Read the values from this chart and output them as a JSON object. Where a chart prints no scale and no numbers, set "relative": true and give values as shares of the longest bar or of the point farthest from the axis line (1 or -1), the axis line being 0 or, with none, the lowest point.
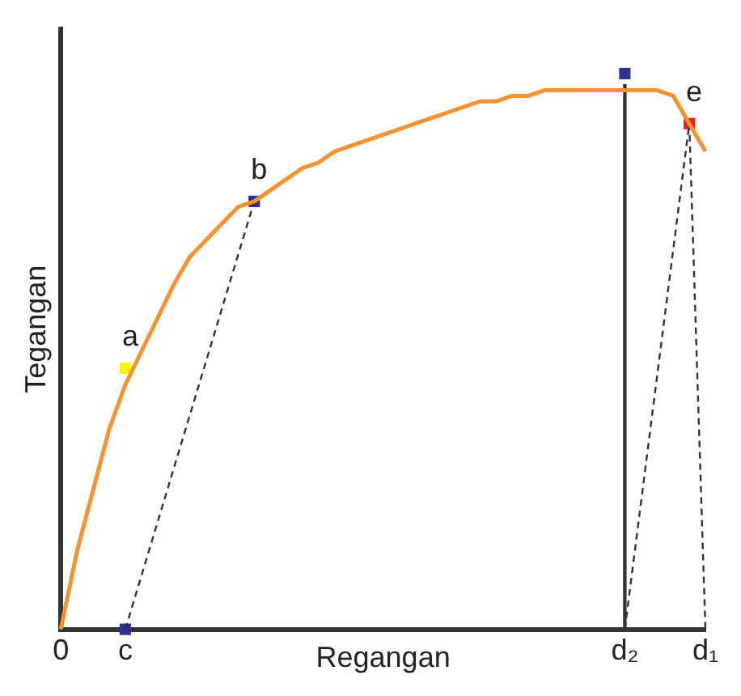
{
  "chart_data": {
    "type": "line",
    "relative": true,
    "xlabel": "Regangan",
    "ylabel": "Tegangan",
    "categories": [
      "0",
      null,
      null,
      null,
      "c",
      null,
      null,
      null,
      null,
      null,
      null,
      null,
      null,
      null,
      null,
      null,
      null,
      null,
      null,
      null,
      null,
      null,
      null,
      null,
      null,
      null,
      null,
      null,
      null,
      null,
      null,
      null,
      null,
      null,
      null,
      "d₂",
      null,
      null,
      null,
      null,
      "d₁"
    ],
    "grid": false,
    "legend": false,
    "series": [
      {
        "color": "#f7922e",
        "marker": "none",
        "line_style": "solid",
        "values": [
          0,
          0.14,
          0.25,
          0.36,
          0.44,
          0.5,
          0.56,
          0.62,
          0.67,
          0.7,
          0.73,
          0.76,
          0.77,
          0.79,
          0.81,
          0.83,
          0.84,
          0.86,
          0.87,
          0.88,
          0.89,
          0.9,
          0.91,
          0.92,
          0.93,
          0.94,
          0.95,
          0.95,
          0.96,
          0.96,
          0.97,
          0.97,
          0.97,
          0.97,
          0.97,
          0.97,
          0.97,
          0.97,
          0.96,
          0.91,
          0.86
        ]
      },
      {
        "type": "line",
        "color": "#333333",
        "marker": "none",
        "line_style": "dashed",
        "values": [
          null,
          null,
          null,
          null,
          0,
          null,
          null,
          null,
          null,
          null,
          null,
          null,
          0.77,
          null,
          null,
          null,
          null,
          null,
          null,
          null,
          null,
          null,
          null,
          null,
          null,
          null,
          null,
          null,
          null,
          null,
          null,
          null,
          null,
          null,
          null,
          null,
          null,
          null,
          null,
          null,
          null
        ]
      },
      {
        "type": "line",
        "color": "#333333",
        "marker": "none",
        "line_style": "dashed",
        "values": [
          null,
          null,
          null,
          null,
          null,
          null,
          null,
          null,
          null,
          null,
          null,
          null,
          null,
          null,
          null,
          null,
          null,
          null,
          null,
          null,
          null,
          null,
          null,
          null,
          null,
          null,
          null,
          null,
          null,
          null,
          null,
          null,
          null,
          null,
          null,
          0,
          null,
          null,
          null,
          0.91,
          0
        ]
      },
      {
        "type": "scatter",
        "name": "a",
        "color": "#fff200",
        "marker": "square",
        "values": [
          null,
          null,
          null,
          null,
          0.47,
          null,
          null,
          null,
          null,
          null,
          null,
          null,
          null,
          null,
          null,
          null,
          null,
          null,
          null,
          null,
          null,
          null,
          null,
          null,
          null,
          null,
          null,
          null,
          null,
          null,
          null,
          null,
          null,
          null,
          null,
          null,
          null,
          null,
          null,
          null,
          null
        ]
      },
      {
        "type": "scatter",
        "name": "b",
        "color": "#2e3192",
        "marker": "square",
        "values": [
          null,
          null,
          null,
          null,
          null,
          null,
          null,
          null,
          null,
          null,
          null,
          null,
          0.77,
          null,
          null,
          null,
          null,
          null,
          null,
          null,
          null,
          null,
          null,
          null,
          null,
          null,
          null,
          null,
          null,
          null,
          null,
          null,
          null,
          null,
          null,
          null,
          null,
          null,
          null,
          null,
          null
        ]
      },
      {
        "type": "scatter",
        "name": "e",
        "color": "#ed1c24",
        "marker": "square",
        "values": [
          null,
          null,
          null,
          null,
          null,
          null,
          null,
          null,
          null,
          null,
          null,
          null,
          null,
          null,
          null,
          null,
          null,
          null,
          null,
          null,
          null,
          null,
          null,
          null,
          null,
          null,
          null,
          null,
          null,
          null,
          null,
          null,
          null,
          null,
          null,
          null,
          null,
          null,
          null,
          0.91,
          null
        ]
      },
      {
        "type": "bar",
        "color": "#333333",
        "values": [
          null,
          null,
          null,
          null,
          null,
          null,
          null,
          null,
          null,
          null,
          null,
          null,
          null,
          null,
          null,
          null,
          null,
          null,
          null,
          null,
          null,
          null,
          null,
          null,
          null,
          null,
          null,
          null,
          null,
          null,
          null,
          null,
          null,
          null,
          null,
          0.98,
          null,
          null,
          null,
          null,
          null
        ]
      },
      {
        "type": "scatter",
        "color": "#2e3192",
        "marker": "square",
        "values": [
          null,
          null,
          null,
          null,
          0,
          null,
          null,
          null,
          null,
          null,
          null,
          null,
          null,
          null,
          null,
          null,
          null,
          null,
          null,
          null,
          null,
          null,
          null,
          null,
          null,
          null,
          null,
          null,
          null,
          null,
          null,
          null,
          null,
          null,
          null,
          1,
          null,
          null,
          null,
          null,
          null
        ]
      }
    ]
  }
}
